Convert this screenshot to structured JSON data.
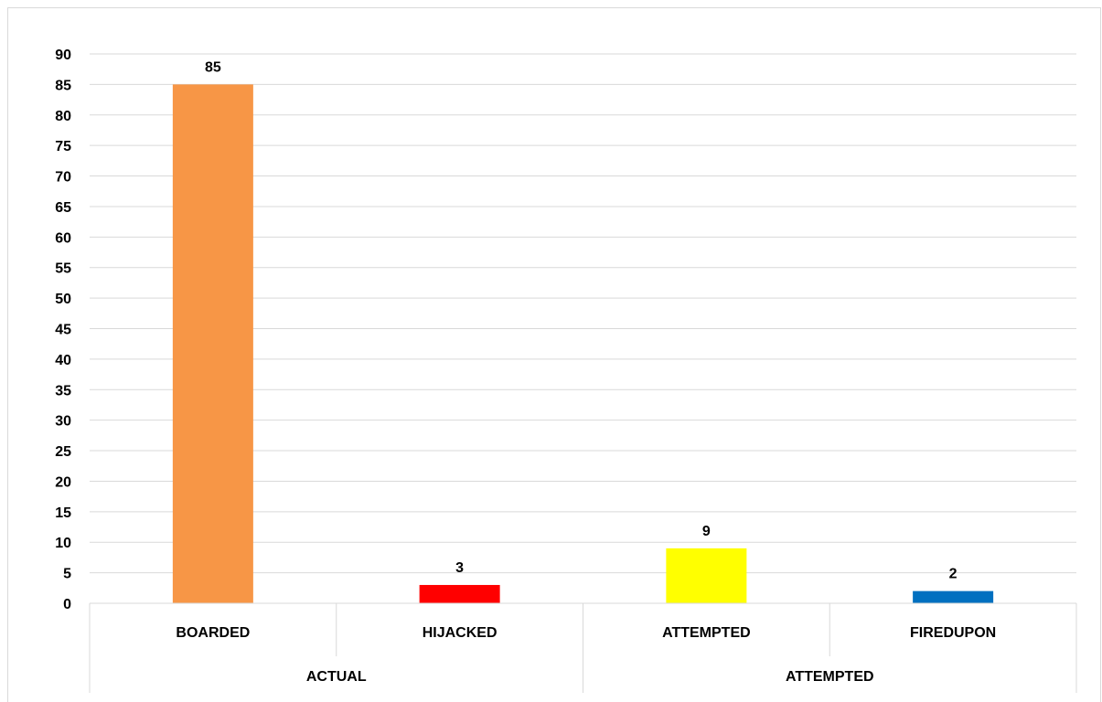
{
  "chart_data": {
    "type": "bar",
    "title": "",
    "xlabel": "",
    "ylabel": "",
    "ylim": [
      0,
      90
    ],
    "ytick_step": 5,
    "grid": true,
    "legend": "none",
    "groups": [
      {
        "label": "ACTUAL",
        "categories": [
          "BOARDED",
          "HIJACKED"
        ]
      },
      {
        "label": "ATTEMPTED",
        "categories": [
          "ATTEMPTED",
          "FIREDUPON"
        ]
      }
    ],
    "categories": [
      "BOARDED",
      "HIJACKED",
      "ATTEMPTED",
      "FIREDUPON"
    ],
    "values": [
      85,
      3,
      9,
      2
    ],
    "colors": [
      "#F79646",
      "#FF0000",
      "#FFFF00",
      "#0070C0"
    ]
  }
}
